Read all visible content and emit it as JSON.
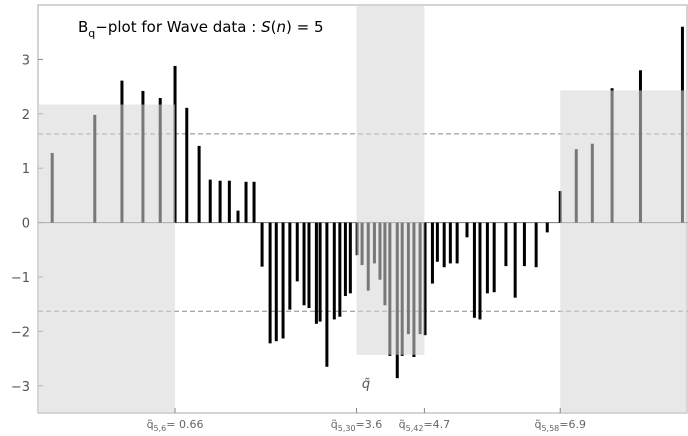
{
  "chart_data": {
    "type": "bar",
    "title": [
      "B",
      "q",
      "−plot for Wave data : ",
      "S",
      "(",
      "n",
      ") = 5"
    ],
    "annotation": "q̃",
    "x": [
      -1.33,
      -0.64,
      -0.2,
      0.14,
      0.42,
      0.66,
      0.85,
      1.05,
      1.23,
      1.39,
      1.54,
      1.68,
      1.81,
      1.94,
      2.07,
      2.2,
      2.3,
      2.41,
      2.52,
      2.64,
      2.75,
      2.83,
      2.95,
      3.01,
      3.12,
      3.24,
      3.33,
      3.42,
      3.5,
      3.61,
      3.69,
      3.79,
      3.89,
      3.98,
      4.06,
      4.14,
      4.26,
      4.34,
      4.44,
      4.53,
      4.63,
      4.71,
      4.83,
      4.91,
      5.02,
      5.12,
      5.23,
      5.39,
      5.51,
      5.6,
      5.72,
      5.83,
      6.02,
      6.17,
      6.32,
      6.51,
      6.69,
      6.9,
      7.16,
      7.42,
      7.74,
      8.2,
      8.88
    ],
    "values": [
      1.28,
      1.98,
      2.61,
      2.42,
      2.29,
      2.88,
      2.11,
      1.41,
      0.79,
      0.77,
      0.77,
      0.22,
      0.75,
      0.75,
      -0.81,
      -2.22,
      -2.18,
      -2.13,
      -1.6,
      -1.08,
      -1.52,
      -1.57,
      -1.86,
      -1.82,
      -2.65,
      -1.78,
      -1.73,
      -1.35,
      -1.3,
      -0.6,
      -0.78,
      -1.25,
      -0.75,
      -1.05,
      -1.52,
      -2.45,
      -2.86,
      -2.45,
      -2.05,
      -2.47,
      -2.05,
      -2.07,
      -1.12,
      -0.72,
      -0.82,
      -0.75,
      -0.75,
      -0.27,
      -1.75,
      -1.78,
      -1.3,
      -1.28,
      -0.8,
      -1.38,
      -0.8,
      -0.82,
      -0.18,
      0.58,
      1.35,
      1.45,
      2.47,
      2.8,
      3.6
    ],
    "color": "#000000",
    "shade_color": "#d6d6d6",
    "shaded_regions": [
      {
        "x0": -1.56,
        "x1": 0.66,
        "y0": -3.5,
        "y1": 2.17
      },
      {
        "x0": 3.6,
        "x1": 4.7,
        "y0": -2.43,
        "y1": 4.0
      },
      {
        "x0": 6.9,
        "x1": 8.97,
        "y0": -3.5,
        "y1": 2.43
      }
    ],
    "reference_lines": [
      1.63,
      -1.63
    ],
    "xlim": [
      -1.56,
      8.97
    ],
    "ylim": [
      -3.5,
      4.0
    ],
    "xticks": [
      {
        "value": 0.66,
        "prefix": "q̃",
        "subscript": "5,6",
        "label": "= 0.66"
      },
      {
        "value": 3.6,
        "prefix": "q̃",
        "subscript": "5,30",
        "label": "=3.6"
      },
      {
        "value": 4.7,
        "prefix": "q̃",
        "subscript": "5,42",
        "label": "=4.7"
      },
      {
        "value": 6.9,
        "prefix": "q̃",
        "subscript": "5,58",
        "label": "=6.9"
      }
    ],
    "yticks": [
      {
        "value": -3,
        "label": "−3"
      },
      {
        "value": -2,
        "label": "−2"
      },
      {
        "value": -1,
        "label": "−1"
      },
      0,
      1,
      2,
      3
    ]
  }
}
